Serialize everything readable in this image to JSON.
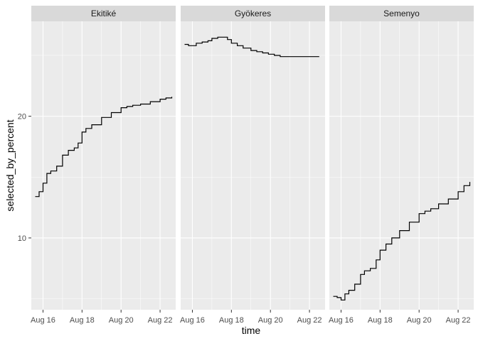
{
  "chart_data": {
    "type": "line",
    "facet_by": "player",
    "xlabel": "time",
    "ylabel": "selected_by_percent",
    "x_ticks": [
      "Aug 16",
      "Aug 18",
      "Aug 20",
      "Aug 22"
    ],
    "y_ticks": [
      10,
      20
    ],
    "xlim": [
      15.4,
      22.8
    ],
    "ylim": [
      4.1,
      27.8
    ],
    "grid": true,
    "legend": "none",
    "colors": {
      "panel": "#ebebeb",
      "strip": "#d9d9d9",
      "grid": "#ffffff",
      "line": "#000000"
    },
    "panels": [
      {
        "title": "Ekitiké",
        "x": [
          15.6,
          15.8,
          16.0,
          16.2,
          16.4,
          16.7,
          17.0,
          17.3,
          17.6,
          17.8,
          18.0,
          18.2,
          18.5,
          19.0,
          19.5,
          20.0,
          20.3,
          20.6,
          21.0,
          21.5,
          22.0,
          22.3,
          22.6
        ],
        "values": [
          13.4,
          13.8,
          14.5,
          15.3,
          15.5,
          15.9,
          16.8,
          17.2,
          17.4,
          17.8,
          18.7,
          19.0,
          19.3,
          19.9,
          20.3,
          20.7,
          20.8,
          20.9,
          21.0,
          21.2,
          21.4,
          21.5,
          21.6
        ]
      },
      {
        "title": "Gyökeres",
        "x": [
          15.6,
          15.8,
          16.0,
          16.2,
          16.5,
          16.8,
          17.0,
          17.3,
          17.6,
          17.8,
          18.0,
          18.3,
          18.6,
          19.0,
          19.3,
          19.6,
          19.9,
          20.2,
          20.5,
          21.0,
          21.5,
          22.0,
          22.5
        ],
        "values": [
          25.9,
          25.8,
          25.8,
          26.0,
          26.1,
          26.2,
          26.4,
          26.5,
          26.5,
          26.3,
          26.0,
          25.8,
          25.6,
          25.4,
          25.3,
          25.2,
          25.1,
          25.0,
          24.9,
          24.9,
          24.9,
          24.9,
          24.9
        ]
      },
      {
        "title": "Semenyo",
        "x": [
          15.6,
          15.8,
          16.0,
          16.2,
          16.4,
          16.7,
          17.0,
          17.2,
          17.5,
          17.8,
          18.0,
          18.3,
          18.6,
          19.0,
          19.5,
          20.0,
          20.3,
          20.6,
          21.0,
          21.5,
          22.0,
          22.3,
          22.6
        ],
        "values": [
          5.2,
          5.1,
          4.9,
          5.4,
          5.7,
          6.2,
          7.0,
          7.3,
          7.5,
          8.2,
          9.0,
          9.5,
          10.0,
          10.6,
          11.3,
          12.0,
          12.2,
          12.4,
          12.8,
          13.2,
          13.8,
          14.3,
          14.6
        ]
      }
    ]
  }
}
